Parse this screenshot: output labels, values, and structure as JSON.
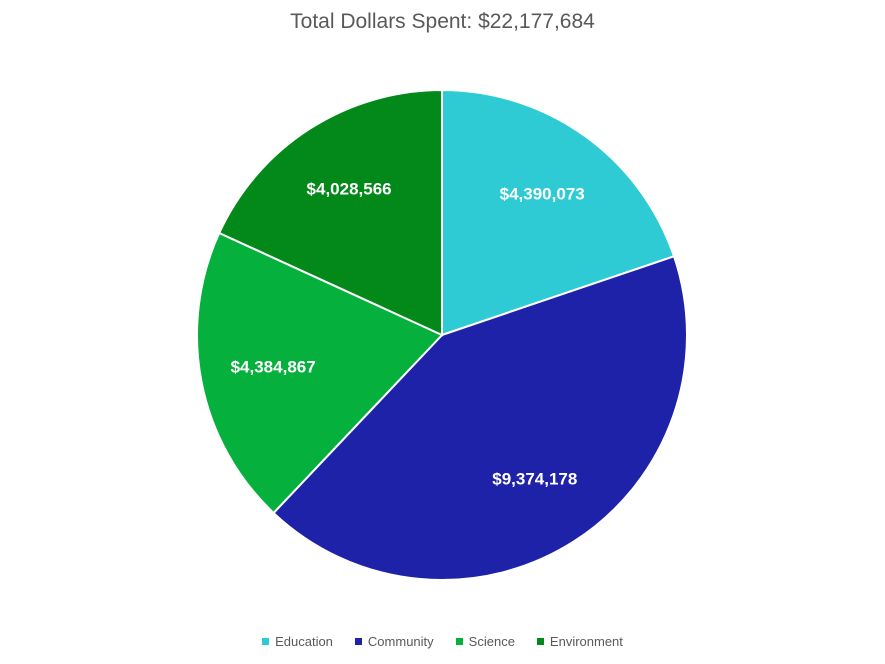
{
  "chart_data": {
    "type": "pie",
    "title": "Total Dollars Spent: $22,177,684",
    "categories": [
      "Education",
      "Community",
      "Science",
      "Environment"
    ],
    "values": [
      4390073,
      9374178,
      4384867,
      4028566
    ],
    "data_labels": [
      "$4,390,073",
      "$9,374,178",
      "$4,384,867",
      "$4,028,566"
    ],
    "colors": [
      "#2ECBD4",
      "#1E22A8",
      "#05B03C",
      "#03881A"
    ],
    "legend_position": "bottom",
    "start": "top, clockwise"
  }
}
